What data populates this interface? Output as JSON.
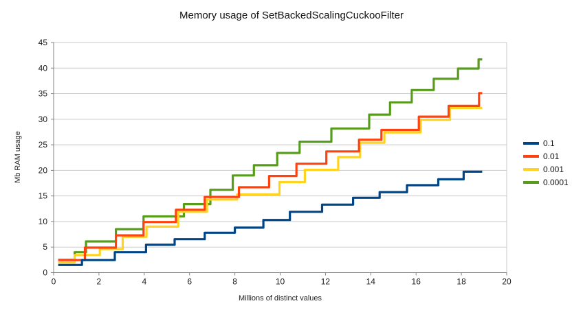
{
  "title": "Memory usage of SetBackedScalingCuckooFilter",
  "x_axis": {
    "title": "Millions of distinct values",
    "min": 0,
    "max": 20,
    "ticks": [
      0,
      2,
      4,
      6,
      8,
      10,
      12,
      14,
      16,
      18,
      20
    ]
  },
  "y_axis": {
    "title": "Mb RAM usage",
    "min": 0,
    "max": 45,
    "ticks": [
      0,
      5,
      10,
      15,
      20,
      25,
      30,
      35,
      40,
      45
    ]
  },
  "legend": {
    "position": "right",
    "entries": [
      "0.1",
      "0.01",
      "0.001",
      "0.0001"
    ]
  },
  "colors": {
    "gridline": "#c9c9c9",
    "axis": "#808080",
    "tick": "#808080",
    "text": "#1a1a1a",
    "background": "#ffffff"
  },
  "chart_data": {
    "type": "line",
    "line_style": "step",
    "grid": "horizontal-only",
    "legend_position": "right",
    "xlabel": "Millions of distinct values",
    "ylabel": "Mb RAM usage",
    "xlim": [
      0,
      20
    ],
    "ylim": [
      0,
      45
    ],
    "series_note": "levels are [x_start_millions, x_end_millions, Mb_RAM]; lines are staircases",
    "series": [
      {
        "name": "0.1",
        "color": "#004586",
        "levels": [
          [
            0.2,
            1.25,
            1.5
          ],
          [
            1.25,
            2.7,
            2.45
          ],
          [
            2.7,
            4.08,
            4.0
          ],
          [
            4.08,
            5.34,
            5.45
          ],
          [
            5.34,
            6.67,
            6.55
          ],
          [
            6.67,
            8.0,
            7.8
          ],
          [
            8.0,
            9.26,
            8.8
          ],
          [
            9.26,
            10.43,
            10.3
          ],
          [
            10.43,
            11.85,
            11.9
          ],
          [
            11.85,
            13.22,
            13.3
          ],
          [
            13.22,
            14.39,
            14.65
          ],
          [
            14.39,
            15.6,
            15.75
          ],
          [
            15.6,
            16.98,
            17.1
          ],
          [
            16.98,
            18.1,
            18.25
          ],
          [
            18.1,
            18.92,
            19.75
          ]
        ]
      },
      {
        "name": "0.01",
        "color": "#ff420e",
        "levels": [
          [
            0.2,
            1.38,
            2.45
          ],
          [
            1.38,
            2.75,
            4.9
          ],
          [
            2.75,
            3.97,
            7.3
          ],
          [
            3.97,
            5.4,
            9.9
          ],
          [
            5.4,
            6.67,
            12.3
          ],
          [
            6.67,
            8.18,
            14.8
          ],
          [
            8.18,
            9.51,
            16.7
          ],
          [
            9.51,
            10.72,
            18.9
          ],
          [
            10.72,
            12.04,
            21.3
          ],
          [
            12.04,
            13.48,
            23.7
          ],
          [
            13.48,
            14.47,
            26.0
          ],
          [
            14.47,
            16.12,
            27.9
          ],
          [
            16.12,
            17.44,
            30.5
          ],
          [
            17.44,
            18.78,
            32.6
          ],
          [
            18.78,
            18.92,
            35.1
          ]
        ]
      },
      {
        "name": "0.001",
        "color": "#ffd320",
        "levels": [
          [
            0.2,
            0.93,
            2.0
          ],
          [
            0.93,
            2.04,
            3.45
          ],
          [
            2.04,
            3.05,
            4.6
          ],
          [
            3.05,
            4.1,
            7.0
          ],
          [
            4.1,
            5.5,
            9.0
          ],
          [
            5.5,
            6.77,
            11.9
          ],
          [
            6.77,
            8.1,
            14.3
          ],
          [
            8.1,
            9.97,
            15.3
          ],
          [
            9.97,
            11.09,
            17.7
          ],
          [
            11.09,
            12.56,
            20.1
          ],
          [
            12.56,
            13.53,
            22.6
          ],
          [
            13.53,
            14.6,
            25.4
          ],
          [
            14.6,
            16.2,
            27.4
          ],
          [
            16.2,
            17.5,
            29.9
          ],
          [
            17.5,
            18.92,
            32.2
          ]
        ]
      },
      {
        "name": "0.0001",
        "color": "#579d1c",
        "levels": [
          [
            0.2,
            0.93,
            2.5
          ],
          [
            0.93,
            1.43,
            4.0
          ],
          [
            1.43,
            2.75,
            6.1
          ],
          [
            2.75,
            3.97,
            8.5
          ],
          [
            3.97,
            5.75,
            11.0
          ],
          [
            5.75,
            6.92,
            13.4
          ],
          [
            6.92,
            7.91,
            16.2
          ],
          [
            7.91,
            8.84,
            19.0
          ],
          [
            8.84,
            9.87,
            21.0
          ],
          [
            9.87,
            10.86,
            23.4
          ],
          [
            10.86,
            12.26,
            25.6
          ],
          [
            12.26,
            13.93,
            28.2
          ],
          [
            13.93,
            14.85,
            30.9
          ],
          [
            14.85,
            15.81,
            33.3
          ],
          [
            15.81,
            16.78,
            35.7
          ],
          [
            16.78,
            17.85,
            37.9
          ],
          [
            17.85,
            18.76,
            39.9
          ],
          [
            18.76,
            18.92,
            41.7
          ]
        ]
      }
    ]
  }
}
